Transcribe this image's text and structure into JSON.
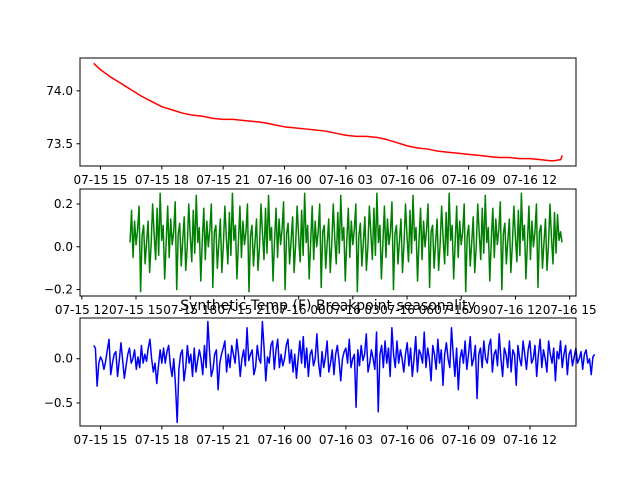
{
  "chart_data": [
    {
      "type": "line",
      "panel": "top",
      "color": "#ff0000",
      "x_tick_labels": [
        "07-15 15",
        "07-15 18",
        "07-15 21",
        "07-16 00",
        "07-16 03",
        "07-16 06",
        "07-16 09",
        "07-16 12"
      ],
      "x_tick_hours": [
        15,
        18,
        21,
        24,
        27,
        30,
        33,
        36
      ],
      "xlim_hours": [
        14.0,
        38.25
      ],
      "ylim": [
        73.29,
        74.31
      ],
      "y_ticks": [
        73.5,
        74.0
      ],
      "y_tick_labels": [
        "73.5",
        "74.0"
      ],
      "x_hours": [
        14.67,
        15.0,
        15.5,
        16.0,
        16.5,
        17.0,
        17.5,
        18.0,
        18.5,
        19.0,
        19.5,
        20.0,
        20.5,
        21.0,
        21.5,
        22.0,
        22.5,
        23.0,
        23.5,
        24.0,
        24.5,
        25.0,
        25.5,
        26.0,
        26.5,
        27.0,
        27.5,
        28.0,
        28.5,
        29.0,
        29.5,
        30.0,
        30.5,
        31.0,
        31.5,
        32.0,
        32.5,
        33.0,
        33.5,
        34.0,
        34.5,
        35.0,
        35.5,
        36.0,
        36.5,
        37.0,
        37.17,
        37.5,
        37.58
      ],
      "values": [
        74.26,
        74.2,
        74.13,
        74.07,
        74.01,
        73.95,
        73.9,
        73.85,
        73.82,
        73.79,
        73.77,
        73.76,
        73.74,
        73.73,
        73.73,
        73.72,
        73.71,
        73.7,
        73.68,
        73.66,
        73.65,
        73.64,
        73.63,
        73.62,
        73.6,
        73.58,
        73.57,
        73.57,
        73.56,
        73.54,
        73.51,
        73.48,
        73.46,
        73.45,
        73.43,
        73.42,
        73.41,
        73.4,
        73.39,
        73.38,
        73.37,
        73.37,
        73.36,
        73.36,
        73.35,
        73.34,
        73.34,
        73.35,
        73.39
      ]
    },
    {
      "type": "line",
      "panel": "middle",
      "color": "#008000",
      "x_tick_labels": [
        "07-15 12",
        "07-15 15",
        "07-15 18",
        "07-15 21",
        "07-16 00",
        "07-16 03",
        "07-16 06",
        "07-16 09",
        "07-16 12",
        "07-16 15"
      ],
      "x_tick_hours": [
        12,
        15,
        18,
        21,
        24,
        27,
        30,
        33,
        36,
        39
      ],
      "xlim_hours": [
        11.9,
        39.35
      ],
      "ylim": [
        -0.23,
        0.27
      ],
      "y_ticks": [
        -0.2,
        0.0,
        0.2
      ],
      "y_tick_labels": [
        "−0.2",
        "0.0",
        "0.2"
      ],
      "x_start_hours": 14.67,
      "x_step_hours": 0.0833,
      "values": [
        0.02,
        0.17,
        -0.05,
        0.12,
        0.01,
        0.08,
        0.19,
        -0.21,
        0.05,
        0.1,
        -0.08,
        0.02,
        0.12,
        -0.12,
        0.01,
        0.2,
        0.06,
        -0.06,
        0.18,
        -0.04,
        0.25,
        0.03,
        0.1,
        -0.15,
        0.02,
        0.19,
        -0.05,
        0.13,
        0.01,
        0.07,
        0.21,
        -0.2,
        0.06,
        0.11,
        -0.09,
        0.03,
        0.14,
        -0.11,
        0.0,
        0.2,
        0.05,
        -0.07,
        0.17,
        -0.03,
        0.24,
        0.02,
        0.09,
        -0.16,
        0.03,
        0.18,
        -0.06,
        0.12,
        0.0,
        0.08,
        0.2,
        -0.19,
        0.07,
        0.1,
        -0.1,
        0.02,
        0.13,
        -0.12,
        0.01,
        0.19,
        0.04,
        -0.08,
        0.16,
        -0.04,
        0.25,
        0.03,
        0.1,
        -0.15,
        0.02,
        0.19,
        -0.05,
        0.12,
        0.01,
        0.07,
        0.2,
        -0.21,
        0.05,
        0.1,
        -0.09,
        0.02,
        0.13,
        -0.11,
        0.0,
        0.2,
        0.06,
        -0.06,
        0.18,
        -0.03,
        0.24,
        0.03,
        0.09,
        -0.16,
        0.03,
        0.18,
        -0.05,
        0.13,
        0.01,
        0.08,
        0.21,
        -0.2,
        0.06,
        0.11,
        -0.08,
        0.03,
        0.14,
        -0.12,
        0.01,
        0.19,
        0.05,
        -0.07,
        0.17,
        -0.04,
        0.25,
        0.02,
        0.1,
        -0.15,
        0.02,
        0.19,
        -0.06,
        0.12,
        0.0,
        0.07,
        0.2,
        -0.19,
        0.07,
        0.1,
        -0.1,
        0.02,
        0.13,
        -0.12,
        0.01,
        0.2,
        0.04,
        -0.08,
        0.16,
        -0.03,
        0.24,
        0.03,
        0.09,
        -0.16,
        0.03,
        0.18,
        -0.05,
        0.12,
        0.01,
        0.08,
        0.2,
        -0.21,
        0.05,
        0.11,
        -0.09,
        0.02,
        0.14,
        -0.11,
        0.0,
        0.19,
        0.06,
        -0.06,
        0.18,
        -0.04,
        0.25,
        0.02,
        0.1,
        -0.15,
        0.02,
        0.19,
        -0.05,
        0.13,
        0.01,
        0.07,
        0.21,
        -0.2,
        0.06,
        0.1,
        -0.08,
        0.03,
        0.13,
        -0.12,
        0.01,
        0.2,
        0.05,
        -0.07,
        0.17,
        -0.03,
        0.24,
        0.03,
        0.09,
        -0.16,
        0.03,
        0.18,
        -0.06,
        0.12,
        0.0,
        0.08,
        0.2,
        -0.19,
        0.07,
        0.1,
        -0.1,
        0.02,
        0.13,
        -0.11,
        0.01,
        0.19,
        0.04,
        -0.08,
        0.16,
        -0.04,
        0.25,
        0.03,
        0.1,
        -0.15,
        0.02,
        0.19,
        -0.05,
        0.12,
        0.01,
        0.07,
        0.2,
        -0.21,
        0.05,
        0.1,
        -0.09,
        0.02,
        0.14,
        -0.12,
        0.0,
        0.2,
        0.06,
        -0.06,
        0.18,
        -0.03,
        0.24,
        0.02,
        0.09,
        -0.16,
        0.03,
        0.18,
        -0.05,
        0.13,
        0.01,
        0.08,
        0.21,
        -0.2,
        0.06,
        0.11,
        -0.08,
        0.03,
        0.13,
        -0.12,
        0.01,
        0.19,
        0.05,
        -0.07,
        0.17,
        -0.04,
        0.25,
        0.03,
        0.1,
        -0.15,
        0.02,
        0.19,
        -0.06,
        0.12,
        0.0,
        0.07,
        0.2,
        -0.19,
        0.07,
        0.1,
        -0.1,
        0.02,
        0.13,
        -0.11,
        0.01,
        0.2,
        0.04,
        -0.08,
        0.16,
        -0.03,
        0.15,
        0.03,
        0.07,
        0.02
      ]
    },
    {
      "type": "line",
      "panel": "bottom",
      "color": "#0000ff",
      "title": "Synthetic Temp (F) Breakpoint seasonality",
      "x_tick_labels": [
        "07-15 15",
        "07-15 18",
        "07-15 21",
        "07-16 00",
        "07-16 03",
        "07-16 06",
        "07-16 09",
        "07-16 12"
      ],
      "x_tick_hours": [
        15,
        18,
        21,
        24,
        27,
        30,
        33,
        36
      ],
      "xlim_hours": [
        14.0,
        38.25
      ],
      "ylim": [
        -0.76,
        0.46
      ],
      "y_ticks": [
        -0.5,
        0.0
      ],
      "y_tick_labels": [
        "−0.5",
        "0.0"
      ],
      "x_start_hours": 14.67,
      "x_step_hours": 0.0833,
      "values": [
        0.15,
        0.12,
        -0.31,
        -0.05,
        0.02,
        -0.02,
        -0.12,
        -0.03,
        0.1,
        0.22,
        -0.18,
        -0.05,
        0.05,
        0.08,
        -0.2,
        -0.02,
        0.18,
        -0.02,
        -0.22,
        -0.08,
        0.05,
        0.12,
        -0.05,
        0.0,
        0.1,
        -0.12,
        0.02,
        -0.1,
        0.15,
        -0.05,
        0.05,
        -0.03,
        0.12,
        0.22,
        0.0,
        -0.15,
        -0.05,
        -0.28,
        -0.08,
        0.1,
        -0.05,
        0.12,
        -0.05,
        0.08,
        0.15,
        -0.08,
        -0.2,
        0.0,
        -0.3,
        -0.72,
        -0.12,
        0.05,
        0.1,
        -0.25,
        -0.1,
        0.15,
        -0.05,
        0.05,
        -0.2,
        0.12,
        -0.15,
        -0.02,
        0.1,
        0.0,
        -0.18,
        0.15,
        -0.1,
        0.42,
        0.08,
        -0.2,
        -0.12,
        0.05,
        0.1,
        -0.35,
        -0.05,
        0.05,
        0.12,
        0.2,
        -0.15,
        0.05,
        -0.1,
        0.15,
        0.05,
        -0.05,
        0.22,
        0.05,
        -0.2,
        0.0,
        0.1,
        -0.08,
        0.35,
        -0.02,
        0.05,
        0.1,
        -0.18,
        -0.1,
        0.15,
        0.0,
        -0.05,
        0.42,
        0.12,
        -0.25,
        0.02,
        -0.05,
        0.15,
        0.2,
        -0.12,
        0.1,
        0.22,
        -0.1,
        0.05,
        -0.08,
        0.0,
        0.15,
        0.22,
        -0.05,
        0.1,
        -0.15,
        0.05,
        -0.22,
        0.0,
        0.2,
        -0.05,
        0.25,
        -0.1,
        0.12,
        -0.2,
        0.05,
        0.1,
        -0.08,
        0.0,
        0.28,
        -0.05,
        -0.2,
        0.08,
        -0.1,
        0.02,
        0.2,
        -0.15,
        -0.05,
        0.1,
        -0.18,
        0.05,
        0.15,
        -0.02,
        -0.25,
        0.0,
        0.08,
        0.12,
        -0.05,
        0.22,
        -0.1,
        0.0,
        0.05,
        -0.55,
        0.1,
        -0.08,
        0.15,
        -0.02,
        0.05,
        0.28,
        -0.15,
        -0.05,
        0.1,
        0.0,
        -0.12,
        0.3,
        -0.6,
        0.05,
        0.15,
        -0.1,
        0.2,
        -0.05,
        0.12,
        -0.2,
        0.35,
        0.05,
        -0.1,
        0.2,
        -0.05,
        0.1,
        0.0,
        -0.15,
        0.05,
        0.18,
        -0.08,
        0.12,
        -0.2,
        0.0,
        0.25,
        -0.15,
        0.1,
        0.05,
        -0.05,
        0.3,
        -0.1,
        0.12,
        0.0,
        -0.25,
        0.15,
        0.05,
        -0.12,
        0.22,
        -0.05,
        0.1,
        -0.3,
        0.05,
        0.18,
        0.0,
        -0.1,
        0.35,
        0.05,
        -0.2,
        0.12,
        -0.35,
        0.0,
        0.1,
        -0.05,
        0.2,
        -0.12,
        0.05,
        0.25,
        -0.08,
        0.0,
        0.15,
        -0.45,
        0.05,
        0.12,
        -0.1,
        0.2,
        0.0,
        -0.05,
        0.15,
        0.22,
        -0.15,
        0.05,
        0.1,
        -0.08,
        0.28,
        0.0,
        -0.2,
        0.12,
        0.05,
        -0.1,
        0.2,
        -0.15,
        0.1,
        0.05,
        -0.3,
        0.15,
        0.0,
        -0.08,
        0.2,
        0.05,
        -0.12,
        0.1,
        0.2,
        -0.05,
        0.0,
        0.15,
        -0.2,
        0.05,
        0.22,
        -0.1,
        0.1,
        0.0,
        -0.15,
        0.2,
        0.05,
        -0.05,
        0.12,
        -0.25,
        0.08,
        0.0,
        0.2,
        -0.1,
        0.05,
        0.15,
        -0.18,
        0.05,
        0.1,
        -0.08,
        0.02,
        0.12,
        -0.05,
        0.0,
        0.08,
        -0.12,
        0.05,
        0.1,
        -0.05,
        0.0,
        -0.18,
        0.02,
        0.05
      ]
    }
  ]
}
